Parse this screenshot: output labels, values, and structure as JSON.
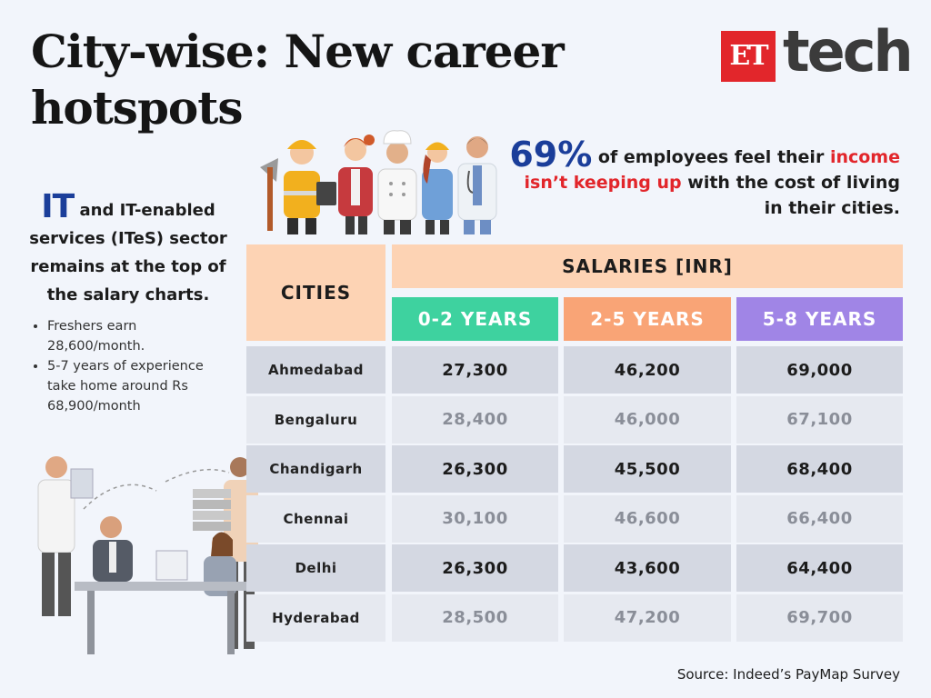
{
  "title": "City-wise: New career hotspots",
  "logo": {
    "et": "ET",
    "tech": "tech"
  },
  "stat": {
    "percent": "69%",
    "text_a": "of employees feel their",
    "highlight": "income isn’t keeping up",
    "text_b": "with the cost of living in their cities."
  },
  "intro": {
    "lead": "IT",
    "text": "and IT-enabled services (ITeS) sector remains at the top of the salary charts."
  },
  "bullets": [
    "Freshers earn 28,600/month.",
    "5-7 years of experience take home around Rs 68,900/month"
  ],
  "source": "Source: Indeed’s PayMap Survey",
  "colors": {
    "accent_blue": "#1b3e9a",
    "accent_red": "#e2262b",
    "header_peach": "#fdd3b4",
    "band_0_2": "#3ed29f",
    "band_2_5": "#f9a476",
    "band_5_8": "#a085e6"
  },
  "chart_data": {
    "type": "table",
    "columns_header": "CITIES",
    "group_header": "SALARIES [INR]",
    "bands": [
      "0-2 YEARS",
      "2-5 YEARS",
      "5-8 YEARS"
    ],
    "rows": [
      {
        "city": "Ahmedabad",
        "values": [
          "27,300",
          "46,200",
          "69,000"
        ]
      },
      {
        "city": "Bengaluru",
        "values": [
          "28,400",
          "46,000",
          "67,100"
        ]
      },
      {
        "city": "Chandigarh",
        "values": [
          "26,300",
          "45,500",
          "68,400"
        ]
      },
      {
        "city": "Chennai",
        "values": [
          "30,100",
          "46,600",
          "66,400"
        ]
      },
      {
        "city": "Delhi",
        "values": [
          "26,300",
          "43,600",
          "64,400"
        ]
      },
      {
        "city": "Hyderabad",
        "values": [
          "28,500",
          "47,200",
          "69,700"
        ]
      }
    ]
  }
}
